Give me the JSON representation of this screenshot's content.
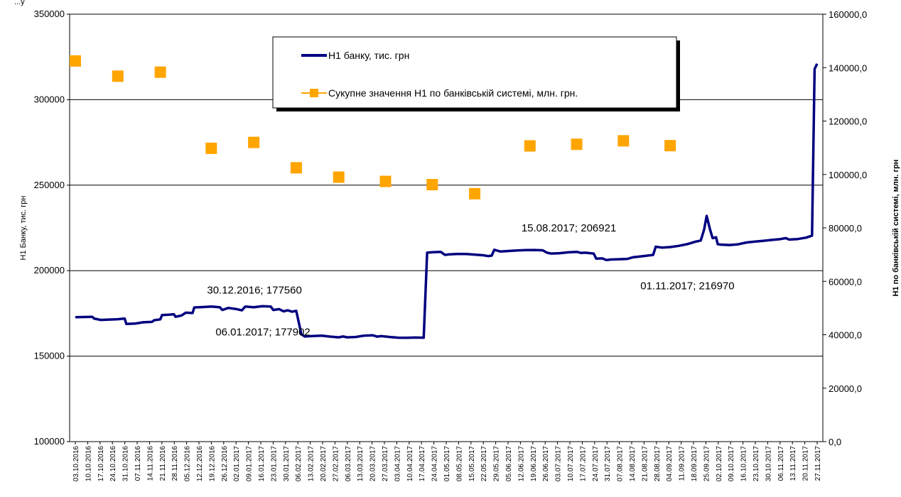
{
  "chart_data": {
    "type": "line",
    "grid": true,
    "legend_position": "top-center",
    "y_left": {
      "label": "Н1 Банку, тис. грн",
      "min": 100000,
      "max": 350000,
      "ticks": [
        "100000",
        "150000",
        "200000",
        "250000",
        "300000",
        "350000"
      ]
    },
    "y_right": {
      "label": "Н1 по банківській системі, млн. грн",
      "min": 0,
      "max": 160000,
      "ticks": [
        "0,0",
        "20000,0",
        "40000,0",
        "60000,0",
        "80000,0",
        "100000,0",
        "120000,0",
        "140000,0",
        "160000,0"
      ]
    },
    "x_dates": [
      "03.10.2016",
      "10.10.2016",
      "17.10.2016",
      "24.10.2016",
      "31.10.2016",
      "07.11.2016",
      "14.11.2016",
      "21.11.2016",
      "28.11.2016",
      "05.12.2016",
      "12.12.2016",
      "19.12.2016",
      "26.12.2016",
      "02.01.2017",
      "09.01.2017",
      "16.01.2017",
      "23.01.2017",
      "30.01.2017",
      "06.02.2017",
      "13.02.2017",
      "20.02.2017",
      "27.02.2017",
      "06.03.2017",
      "13.03.2017",
      "20.03.2017",
      "27.03.2017",
      "03.04.2017",
      "10.04.2017",
      "17.04.2017",
      "24.04.2017",
      "01.05.2017",
      "08.05.2017",
      "15.05.2017",
      "22.05.2017",
      "29.05.2017",
      "05.06.2017",
      "12.06.2017",
      "19.06.2017",
      "26.06.2017",
      "03.07.2017",
      "10.07.2017",
      "17.07.2017",
      "24.07.2017",
      "31.07.2017",
      "07.08.2017",
      "14.08.2017",
      "21.08.2017",
      "28.08.2017",
      "04.09.2017",
      "11.09.2017",
      "18.09.2017",
      "25.09.2017",
      "02.10.2017",
      "09.10.2017",
      "16.10.2017",
      "23.10.2017",
      "30.10.2017",
      "06.11.2017",
      "13.11.2017",
      "20.11.2017",
      "27.11.2017"
    ],
    "series": [
      {
        "name": "Н1 банку, тис. грн",
        "axis": "left",
        "color": "#000080",
        "points": [
          [
            0,
            172800
          ],
          [
            1,
            172900
          ],
          [
            2,
            173000
          ],
          [
            2.2,
            172000
          ],
          [
            3,
            171200
          ],
          [
            4,
            171400
          ],
          [
            5,
            171600
          ],
          [
            5.8,
            172000
          ],
          [
            6,
            168800
          ],
          [
            7,
            169000
          ],
          [
            8,
            169800
          ],
          [
            9,
            170000
          ],
          [
            9.3,
            171000
          ],
          [
            10,
            171500
          ],
          [
            10.2,
            174000
          ],
          [
            11,
            174200
          ],
          [
            11.6,
            174500
          ],
          [
            11.8,
            173000
          ],
          [
            12.5,
            173800
          ],
          [
            13,
            175400
          ],
          [
            13.8,
            175200
          ],
          [
            14,
            178500
          ],
          [
            15,
            178700
          ],
          [
            16,
            179000
          ],
          [
            17,
            178600
          ],
          [
            17.3,
            177000
          ],
          [
            18,
            178200
          ],
          [
            19,
            177500
          ],
          [
            19.6,
            176800
          ],
          [
            20,
            179000
          ],
          [
            21,
            178600
          ],
          [
            22,
            179200
          ],
          [
            23,
            179000
          ],
          [
            23.3,
            177000
          ],
          [
            24,
            177500
          ],
          [
            24.5,
            176200
          ],
          [
            25,
            176800
          ],
          [
            25.5,
            176000
          ],
          [
            26,
            176500
          ],
          [
            26.6,
            162800
          ],
          [
            27,
            161500
          ],
          [
            28,
            161800
          ],
          [
            29,
            162000
          ],
          [
            30,
            161400
          ],
          [
            31,
            161000
          ],
          [
            31.5,
            161500
          ],
          [
            32,
            161000
          ],
          [
            33,
            161200
          ],
          [
            34,
            162000
          ],
          [
            35,
            162200
          ],
          [
            35.5,
            161400
          ],
          [
            36,
            161700
          ],
          [
            37,
            161200
          ],
          [
            38,
            160800
          ],
          [
            39,
            160700
          ],
          [
            40,
            160900
          ],
          [
            41,
            160800
          ],
          [
            41.4,
            210500
          ],
          [
            42,
            210800
          ],
          [
            43,
            211000
          ],
          [
            43.5,
            209200
          ],
          [
            44,
            209500
          ],
          [
            45,
            209800
          ],
          [
            46,
            209700
          ],
          [
            47,
            209400
          ],
          [
            48,
            209000
          ],
          [
            48.6,
            208500
          ],
          [
            49,
            208800
          ],
          [
            49.3,
            212200
          ],
          [
            50,
            211200
          ],
          [
            51,
            211500
          ],
          [
            52,
            211800
          ],
          [
            53,
            212000
          ],
          [
            54,
            212100
          ],
          [
            55,
            211900
          ],
          [
            55.5,
            210500
          ],
          [
            56,
            210000
          ],
          [
            57,
            210200
          ],
          [
            58,
            210700
          ],
          [
            59,
            211000
          ],
          [
            59.5,
            210400
          ],
          [
            60,
            210500
          ],
          [
            61,
            210000
          ],
          [
            61.3,
            207000
          ],
          [
            62,
            207200
          ],
          [
            62.5,
            206200
          ],
          [
            63,
            206500
          ],
          [
            64,
            206700
          ],
          [
            65,
            206900
          ],
          [
            65.6,
            207800
          ],
          [
            66,
            208000
          ],
          [
            67,
            208600
          ],
          [
            68,
            209200
          ],
          [
            68.3,
            214000
          ],
          [
            69,
            213500
          ],
          [
            70,
            213800
          ],
          [
            71,
            214500
          ],
          [
            72,
            215500
          ],
          [
            73,
            217000
          ],
          [
            73.6,
            217600
          ],
          [
            74,
            224000
          ],
          [
            74.3,
            232000
          ],
          [
            74.7,
            224000
          ],
          [
            75,
            219000
          ],
          [
            75.4,
            219500
          ],
          [
            75.6,
            215500
          ],
          [
            76,
            215200
          ],
          [
            77,
            215000
          ],
          [
            78,
            215400
          ],
          [
            79,
            216500
          ],
          [
            80,
            217000
          ],
          [
            81,
            217500
          ],
          [
            82,
            218000
          ],
          [
            83,
            218500
          ],
          [
            83.6,
            219000
          ],
          [
            84,
            218200
          ],
          [
            85,
            218500
          ],
          [
            86,
            219300
          ],
          [
            86.7,
            220500
          ],
          [
            87,
            318000
          ],
          [
            87.3,
            321000
          ]
        ]
      },
      {
        "name": "Сукупне значення Н1 по банківській системі, млн. грн.",
        "axis": "right",
        "color": "#FFA500",
        "points": [
          [
            0,
            142500
          ],
          [
            5,
            136800
          ],
          [
            10,
            138300
          ],
          [
            16,
            109800
          ],
          [
            21,
            112000
          ],
          [
            26,
            102500
          ],
          [
            31,
            99000
          ],
          [
            36.5,
            97400
          ],
          [
            42,
            96200
          ],
          [
            47,
            92800
          ],
          [
            53.5,
            110700
          ],
          [
            59,
            111300
          ],
          [
            64.5,
            112600
          ],
          [
            70,
            110800
          ]
        ]
      }
    ],
    "annotations": [
      {
        "text": "30.12.2016; 177560",
        "x": 15.5,
        "y": 186500
      },
      {
        "text": "06.01.2017; 177902",
        "x": 16.5,
        "y": 162000
      },
      {
        "text": "15.08.2017; 206921",
        "x": 52.5,
        "y": 223000
      },
      {
        "text": "01.11.2017; 216970",
        "x": 66.5,
        "y": 189000
      }
    ],
    "corner_label": "...у"
  }
}
